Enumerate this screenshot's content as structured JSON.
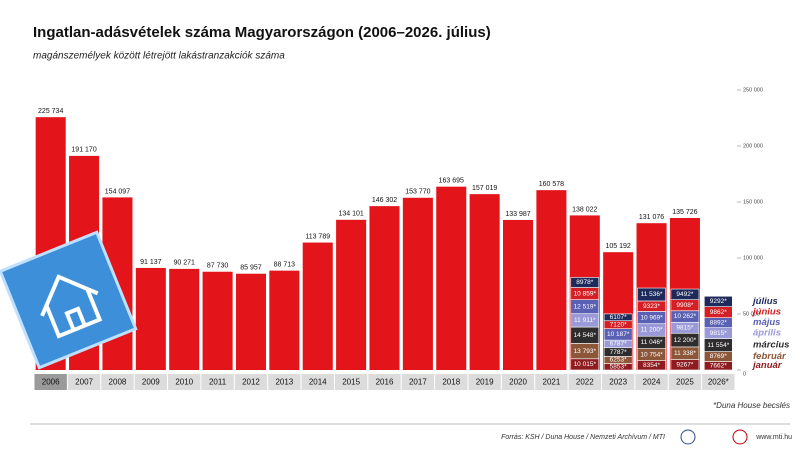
{
  "chart_data": {
    "type": "bar",
    "title": "Ingatlan-adásvételek száma Magyarországon (2006–2026. július)",
    "subtitle": "magánszemélyek között létrejött lakástranzakciók száma",
    "categories": [
      "2006",
      "2007",
      "2008",
      "2009",
      "2010",
      "2011",
      "2012",
      "2013",
      "2014",
      "2015",
      "2016",
      "2017",
      "2018",
      "2019",
      "2020",
      "2021",
      "2022",
      "2023",
      "2024",
      "2025",
      "2026*"
    ],
    "ylim": [
      0,
      250000
    ],
    "yticks": [
      {
        "value": 0,
        "label": "0"
      },
      {
        "value": 50000,
        "label": "50 000"
      },
      {
        "value": 100000,
        "label": "100 000"
      },
      {
        "value": 150000,
        "label": "150 000"
      },
      {
        "value": 200000,
        "label": "200 000"
      },
      {
        "value": 250000,
        "label": "250 000"
      }
    ],
    "grid": false,
    "series": [
      {
        "color": "#e3151b",
        "values": [
          225734,
          191170,
          154097,
          91137,
          90271,
          87730,
          85957,
          88713,
          113789,
          134101,
          146302,
          153770,
          163695,
          157019,
          133987,
          160578,
          138022,
          105192,
          131076,
          135726,
          null
        ],
        "value_labels": [
          "225 734",
          "191 170",
          "154 097",
          "91 137",
          "90 271",
          "87 730",
          "85 957",
          "88 713",
          "113 789",
          "134 101",
          "146 302",
          "153 770",
          "163 695",
          "157 019",
          "133 987",
          "160 578",
          "138 022",
          "105 192",
          "131 076",
          "135 726",
          null
        ]
      },
      {
        "name": "január",
        "color": "#8e1b1f",
        "values": [
          null,
          null,
          null,
          null,
          null,
          null,
          null,
          null,
          null,
          null,
          null,
          null,
          null,
          null,
          null,
          null,
          10015,
          5853,
          8354,
          9267,
          7662
        ],
        "value_labels": [
          null,
          null,
          null,
          null,
          null,
          null,
          null,
          null,
          null,
          null,
          null,
          null,
          null,
          null,
          null,
          null,
          "10 015*",
          "5853*",
          "8354*",
          "9267*",
          "7662*"
        ]
      },
      {
        "name": "február",
        "color": "#8c5638",
        "values": [
          null,
          null,
          null,
          null,
          null,
          null,
          null,
          null,
          null,
          null,
          null,
          null,
          null,
          null,
          null,
          null,
          13793,
          6253,
          10754,
          11338,
          8769
        ],
        "value_labels": [
          null,
          null,
          null,
          null,
          null,
          null,
          null,
          null,
          null,
          null,
          null,
          null,
          null,
          null,
          null,
          null,
          "13 793*",
          "6253*",
          "10 754*",
          "11 338*",
          "8769*"
        ]
      },
      {
        "name": "március",
        "color": "#2e2c2c",
        "values": [
          null,
          null,
          null,
          null,
          null,
          null,
          null,
          null,
          null,
          null,
          null,
          null,
          null,
          null,
          null,
          null,
          14548,
          7787,
          11046,
          12200,
          11554
        ],
        "value_labels": [
          null,
          null,
          null,
          null,
          null,
          null,
          null,
          null,
          null,
          null,
          null,
          null,
          null,
          null,
          null,
          null,
          "14 548*",
          "7787*",
          "11 046*",
          "12 200*",
          "11 554*"
        ]
      },
      {
        "name": "április",
        "color": "#9a9ad8",
        "values": [
          null,
          null,
          null,
          null,
          null,
          null,
          null,
          null,
          null,
          null,
          null,
          null,
          null,
          null,
          null,
          null,
          11911,
          6787,
          11200,
          9815,
          9815
        ],
        "value_labels": [
          null,
          null,
          null,
          null,
          null,
          null,
          null,
          null,
          null,
          null,
          null,
          null,
          null,
          null,
          null,
          null,
          "11 911*",
          "6787*",
          "11 200*",
          "9815*",
          "9815*"
        ]
      },
      {
        "name": "május",
        "color": "#5a60b4",
        "values": [
          null,
          null,
          null,
          null,
          null,
          null,
          null,
          null,
          null,
          null,
          null,
          null,
          null,
          null,
          null,
          null,
          12519,
          10187,
          10969,
          10262,
          8892
        ],
        "value_labels": [
          null,
          null,
          null,
          null,
          null,
          null,
          null,
          null,
          null,
          null,
          null,
          null,
          null,
          null,
          null,
          null,
          "12 519*",
          "10 187*",
          "10 969*",
          "10 262*",
          "8892*"
        ]
      },
      {
        "name": "június",
        "color": "#d42024",
        "values": [
          null,
          null,
          null,
          null,
          null,
          null,
          null,
          null,
          null,
          null,
          null,
          null,
          null,
          null,
          null,
          null,
          10859,
          7120,
          9323,
          9908,
          9862
        ],
        "value_labels": [
          null,
          null,
          null,
          null,
          null,
          null,
          null,
          null,
          null,
          null,
          null,
          null,
          null,
          null,
          null,
          null,
          "10 859*",
          "7120*",
          "9323*",
          "9908*",
          "9862*"
        ]
      },
      {
        "name": "július",
        "color": "#1e2a5c",
        "values": [
          null,
          null,
          null,
          null,
          null,
          null,
          null,
          null,
          null,
          null,
          null,
          null,
          null,
          null,
          null,
          null,
          8978,
          6107,
          11536,
          9492,
          9292
        ],
        "value_labels": [
          null,
          null,
          null,
          null,
          null,
          null,
          null,
          null,
          null,
          null,
          null,
          null,
          null,
          null,
          null,
          null,
          "8978*",
          "6107*",
          "11 536*",
          "9492*",
          "9292*"
        ]
      }
    ],
    "note": "*Duna House becslés",
    "source": "Forrás: KSH / Duna House / Nemzeti Archívum / MTI",
    "website": "www.mti.hu"
  }
}
